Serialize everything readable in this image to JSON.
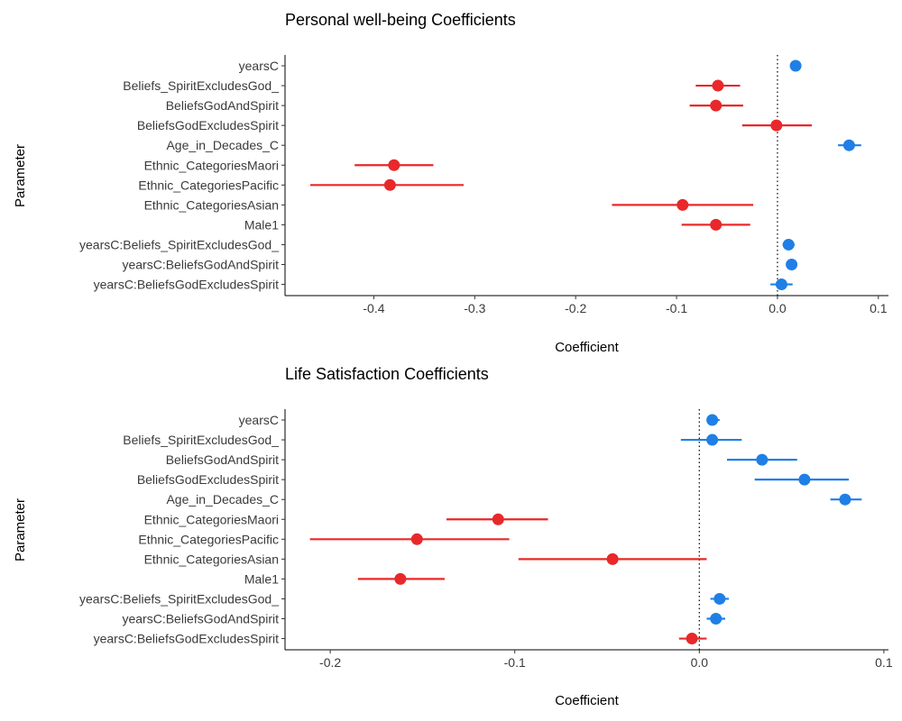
{
  "chart_data": [
    {
      "type": "scatter",
      "title": "Personal well-being Coefficients",
      "xlabel": "Coefficient",
      "ylabel": "Parameter",
      "xlim": [
        -0.488,
        0.11
      ],
      "xticks": [
        -0.4,
        -0.3,
        -0.2,
        -0.1,
        0.0,
        0.1
      ],
      "xtick_labels": [
        "-0.4",
        "-0.3",
        "-0.2",
        "-0.1",
        "0.0",
        "0.1"
      ],
      "reference_line": 0,
      "colors": {
        "positive": "#1f7fe6",
        "negative": "#e8282a"
      },
      "categories": [
        "yearsC",
        "Beliefs_SpiritExcludesGod_",
        "BeliefsGodAndSpirit",
        "BeliefsGodExcludesSpirit",
        "Age_in_Decades_C",
        "Ethnic_CategoriesMaori",
        "Ethnic_CategoriesPacific",
        "Ethnic_CategoriesAsian",
        "Male1",
        "yearsC:Beliefs_SpiritExcludesGod_",
        "yearsC:BeliefsGodAndSpirit",
        "yearsC:BeliefsGodExcludesSpirit"
      ],
      "points": [
        {
          "estimate": 0.018,
          "low": 0.015,
          "high": 0.021,
          "sign": "positive"
        },
        {
          "estimate": -0.059,
          "low": -0.081,
          "high": -0.037,
          "sign": "negative"
        },
        {
          "estimate": -0.061,
          "low": -0.087,
          "high": -0.034,
          "sign": "negative"
        },
        {
          "estimate": -0.001,
          "low": -0.035,
          "high": 0.034,
          "sign": "negative"
        },
        {
          "estimate": 0.071,
          "low": 0.06,
          "high": 0.083,
          "sign": "positive"
        },
        {
          "estimate": -0.38,
          "low": -0.419,
          "high": -0.341,
          "sign": "negative"
        },
        {
          "estimate": -0.384,
          "low": -0.463,
          "high": -0.311,
          "sign": "negative"
        },
        {
          "estimate": -0.094,
          "low": -0.164,
          "high": -0.024,
          "sign": "negative"
        },
        {
          "estimate": -0.061,
          "low": -0.095,
          "high": -0.027,
          "sign": "negative"
        },
        {
          "estimate": 0.011,
          "low": 0.005,
          "high": 0.017,
          "sign": "positive"
        },
        {
          "estimate": 0.014,
          "low": 0.009,
          "high": 0.019,
          "sign": "positive"
        },
        {
          "estimate": 0.004,
          "low": -0.007,
          "high": 0.015,
          "sign": "positive"
        }
      ]
    },
    {
      "type": "scatter",
      "title": "Life Satisfaction Coefficients",
      "xlabel": "Coefficient",
      "ylabel": "Parameter",
      "xlim": [
        -0.2245,
        0.1025
      ],
      "xticks": [
        -0.2,
        -0.1,
        0.0,
        0.1
      ],
      "xtick_labels": [
        "-0.2",
        "-0.1",
        "0.0",
        "0.1"
      ],
      "reference_line": 0,
      "colors": {
        "positive": "#1f7fe6",
        "negative": "#e8282a"
      },
      "categories": [
        "yearsC",
        "Beliefs_SpiritExcludesGod_",
        "BeliefsGodAndSpirit",
        "BeliefsGodExcludesSpirit",
        "Age_in_Decades_C",
        "Ethnic_CategoriesMaori",
        "Ethnic_CategoriesPacific",
        "Ethnic_CategoriesAsian",
        "Male1",
        "yearsC:Beliefs_SpiritExcludesGod_",
        "yearsC:BeliefsGodAndSpirit",
        "yearsC:BeliefsGodExcludesSpirit"
      ],
      "points": [
        {
          "estimate": 0.007,
          "low": 0.004,
          "high": 0.011,
          "sign": "positive"
        },
        {
          "estimate": 0.007,
          "low": -0.01,
          "high": 0.023,
          "sign": "positive"
        },
        {
          "estimate": 0.034,
          "low": 0.015,
          "high": 0.053,
          "sign": "positive"
        },
        {
          "estimate": 0.057,
          "low": 0.03,
          "high": 0.081,
          "sign": "positive"
        },
        {
          "estimate": 0.079,
          "low": 0.071,
          "high": 0.088,
          "sign": "positive"
        },
        {
          "estimate": -0.109,
          "low": -0.137,
          "high": -0.082,
          "sign": "negative"
        },
        {
          "estimate": -0.153,
          "low": -0.211,
          "high": -0.103,
          "sign": "negative"
        },
        {
          "estimate": -0.047,
          "low": -0.098,
          "high": 0.004,
          "sign": "negative"
        },
        {
          "estimate": -0.162,
          "low": -0.185,
          "high": -0.138,
          "sign": "negative"
        },
        {
          "estimate": 0.011,
          "low": 0.006,
          "high": 0.016,
          "sign": "positive"
        },
        {
          "estimate": 0.009,
          "low": 0.004,
          "high": 0.014,
          "sign": "positive"
        },
        {
          "estimate": -0.004,
          "low": -0.011,
          "high": 0.004,
          "sign": "negative"
        }
      ]
    }
  ]
}
